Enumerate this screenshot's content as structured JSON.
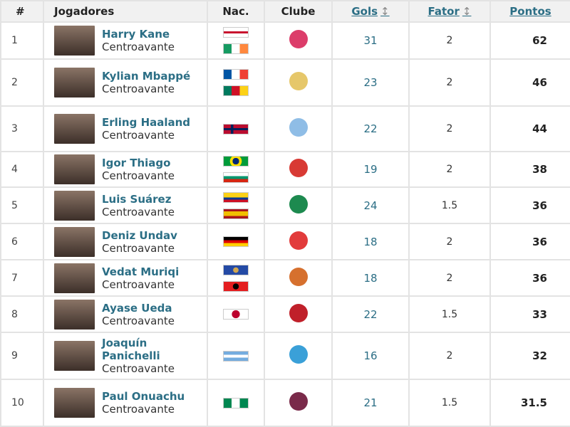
{
  "headers": {
    "rank": "#",
    "player": "Jogadores",
    "nat": "Nac.",
    "club": "Clube",
    "goals": "Gols",
    "factor": "Fator",
    "points": "Pontos",
    "sort_icon": "↕"
  },
  "rows": [
    {
      "rank": "1",
      "name": "Harry Kane",
      "position": "Centroavante",
      "flags": [
        "england",
        "ireland"
      ],
      "club": "bayern-munich",
      "goals": "31",
      "factor": "2",
      "points": "62"
    },
    {
      "rank": "2",
      "name": "Kylian Mbappé",
      "position": "Centroavante",
      "flags": [
        "france",
        "cameroon"
      ],
      "club": "real-madrid",
      "goals": "23",
      "factor": "2",
      "points": "46"
    },
    {
      "rank": "3",
      "name": "Erling Haaland",
      "position": "Centroavante",
      "flags": [
        "norway"
      ],
      "club": "manchester-city",
      "goals": "22",
      "factor": "2",
      "points": "44"
    },
    {
      "rank": "4",
      "name": "Igor Thiago",
      "position": "Centroavante",
      "flags": [
        "brazil",
        "bulgaria"
      ],
      "club": "brentford",
      "goals": "19",
      "factor": "2",
      "points": "38"
    },
    {
      "rank": "5",
      "name": "Luis Suárez",
      "position": "Centroavante",
      "flags": [
        "colombia",
        "spain"
      ],
      "club": "sporting",
      "goals": "24",
      "factor": "1.5",
      "points": "36"
    },
    {
      "rank": "6",
      "name": "Deniz Undav",
      "position": "Centroavante",
      "flags": [
        "germany"
      ],
      "club": "stuttgart",
      "goals": "18",
      "factor": "2",
      "points": "36"
    },
    {
      "rank": "7",
      "name": "Vedat Muriqi",
      "position": "Centroavante",
      "flags": [
        "kosovo",
        "albania"
      ],
      "club": "mallorca",
      "goals": "18",
      "factor": "2",
      "points": "36"
    },
    {
      "rank": "8",
      "name": "Ayase Ueda",
      "position": "Centroavante",
      "flags": [
        "japan"
      ],
      "club": "feyenoord",
      "goals": "22",
      "factor": "1.5",
      "points": "33"
    },
    {
      "rank": "9",
      "name": "Joaquín Panichelli",
      "position": "Centroavante",
      "flags": [
        "argentina"
      ],
      "club": "strasbourg",
      "goals": "16",
      "factor": "2",
      "points": "32"
    },
    {
      "rank": "10",
      "name": "Paul Onuachu",
      "position": "Centroavante",
      "flags": [
        "nigeria"
      ],
      "club": "trabzonspor",
      "goals": "21",
      "factor": "1.5",
      "points": "31.5"
    }
  ],
  "colors": {
    "link": "#2b6e85",
    "header_bg": "#f1f1f1",
    "border": "#e3e3e3"
  }
}
